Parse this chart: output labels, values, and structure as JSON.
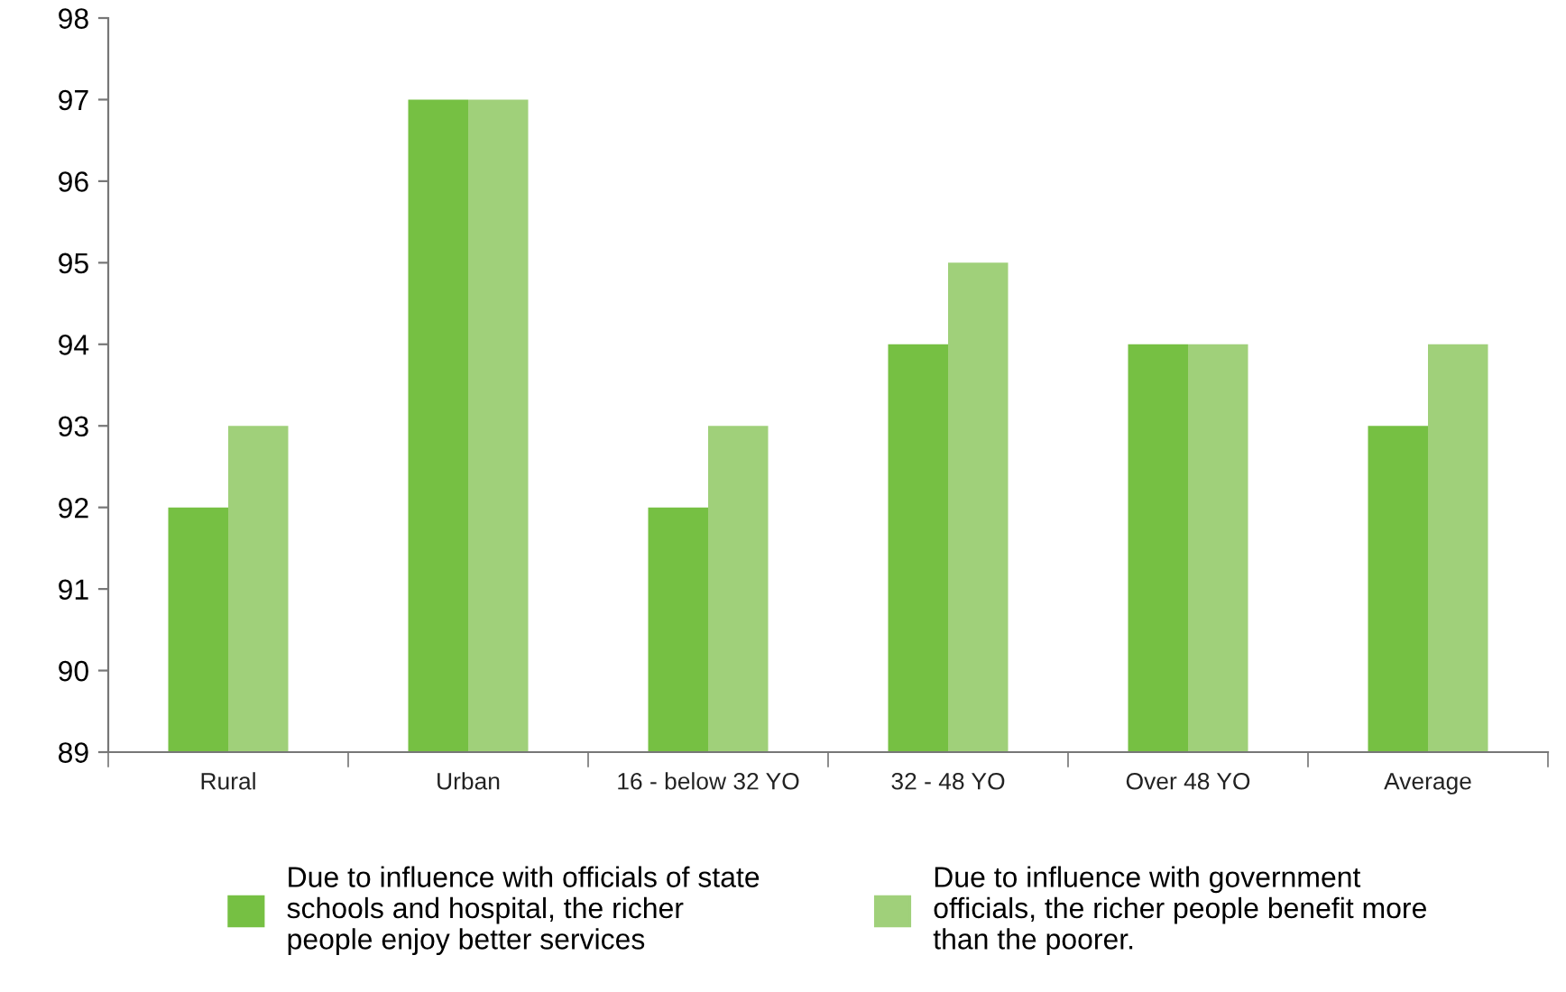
{
  "chart_data": {
    "type": "bar",
    "categories": [
      "Rural",
      "Urban",
      "16 - below 32 YO",
      "32 - 48 YO",
      "Over 48 YO",
      "Average"
    ],
    "series": [
      {
        "name": "Due to influence with officials of state\nschools and hospital, the richer\npeople enjoy better services",
        "color": "#76c043",
        "values": [
          92,
          97,
          92,
          94,
          94,
          93
        ]
      },
      {
        "name": "Due to influence with government\nofficials, the richer people benefit more\nthan the poorer.",
        "color": "#a0d07a",
        "values": [
          93,
          97,
          93,
          95,
          94,
          94
        ]
      }
    ],
    "ylim": [
      89,
      98
    ],
    "yticks": [
      89,
      90,
      91,
      92,
      93,
      94,
      95,
      96,
      97,
      98
    ],
    "grid": false,
    "legend": "bottom"
  }
}
